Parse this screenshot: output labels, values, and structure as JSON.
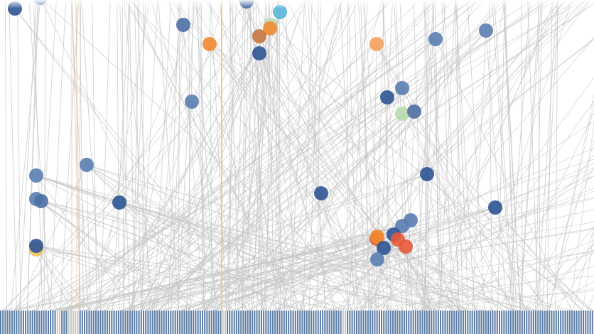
{
  "colors": {
    "background": "#ffffff",
    "link": "#c4c4c4",
    "link_highlight": "#e8c98a",
    "bar_blue": "#5b7ca4",
    "bar_gray": "#c9c5c0",
    "bar_gap": "#ffffff"
  },
  "node_palette": {
    "navy": "#2c5491",
    "blue": "#4e6fa3",
    "lightblue": "#5a7db0",
    "orange": "#f08a32",
    "peach": "#f4a15e",
    "red": "#e8593c",
    "redorange": "#e65a35",
    "green": "#b7dcae",
    "cyan": "#5ab6dc",
    "gold": "#efc25a",
    "brown": "#c4773e"
  },
  "node_opacity": 0.9,
  "bar_strip": {
    "segment_count": 262,
    "highlight_segments": [
      25,
      26,
      30,
      31,
      32,
      33,
      34,
      98,
      99,
      151,
      152
    ]
  },
  "nodes": [
    {
      "id": "n01",
      "color": "navy"
    },
    {
      "id": "n02",
      "color": "lightblue"
    },
    {
      "id": "n03",
      "color": "navy"
    },
    {
      "id": "n04",
      "color": "cyan"
    },
    {
      "id": "n05",
      "color": "green"
    },
    {
      "id": "n06",
      "color": "orange"
    },
    {
      "id": "n07",
      "color": "brown"
    },
    {
      "id": "n08",
      "color": "blue"
    },
    {
      "id": "n09",
      "color": "orange"
    },
    {
      "id": "n10",
      "color": "navy"
    },
    {
      "id": "n11",
      "color": "peach"
    },
    {
      "id": "n12",
      "color": "lightblue"
    },
    {
      "id": "n13",
      "color": "lightblue"
    },
    {
      "id": "n14",
      "color": "lightblue"
    },
    {
      "id": "n15",
      "color": "navy"
    },
    {
      "id": "n16",
      "color": "lightblue"
    },
    {
      "id": "n17",
      "color": "green"
    },
    {
      "id": "n18",
      "color": "blue"
    },
    {
      "id": "n19",
      "color": "lightblue"
    },
    {
      "id": "n20",
      "color": "lightblue"
    },
    {
      "id": "n21",
      "color": "navy"
    },
    {
      "id": "n22",
      "color": "lightblue"
    },
    {
      "id": "n23",
      "color": "blue"
    },
    {
      "id": "n24",
      "color": "navy"
    },
    {
      "id": "n25",
      "color": "navy"
    },
    {
      "id": "n26",
      "color": "navy"
    },
    {
      "id": "n27",
      "color": "gold"
    },
    {
      "id": "n28",
      "color": "navy"
    },
    {
      "id": "n29",
      "color": "lightblue"
    },
    {
      "id": "n30",
      "color": "lightblue"
    },
    {
      "id": "n31",
      "color": "navy"
    },
    {
      "id": "n32",
      "color": "redorange"
    },
    {
      "id": "n33",
      "color": "orange"
    },
    {
      "id": "n34",
      "color": "red"
    },
    {
      "id": "n35",
      "color": "red"
    },
    {
      "id": "n36",
      "color": "navy"
    },
    {
      "id": "n37",
      "color": "lightblue"
    }
  ]
}
